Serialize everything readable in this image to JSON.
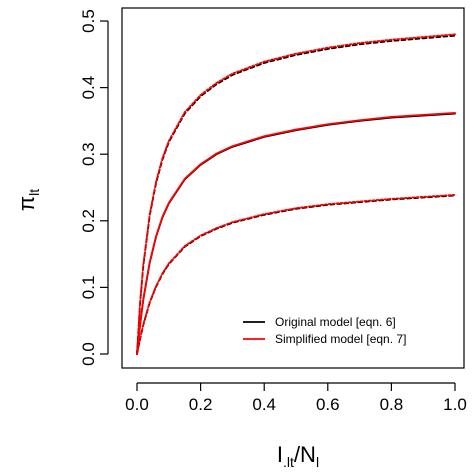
{
  "chart_data": {
    "type": "line",
    "xlabel": "I.lt/Nl",
    "ylabel": "πlt",
    "xlim": [
      0.0,
      1.0
    ],
    "ylim": [
      0.0,
      0.5
    ],
    "xticks": [
      "0.0",
      "0.2",
      "0.4",
      "0.6",
      "0.8",
      "1.0"
    ],
    "yticks": [
      "0.0",
      "0.1",
      "0.2",
      "0.3",
      "0.4",
      "0.5"
    ],
    "grid": false,
    "legend_position": "bottom-right",
    "legend": [
      {
        "label": "Original model [eqn. 6]",
        "color": "#000000"
      },
      {
        "label": "Simplified model [eqn. 7]",
        "color": "#ff0000"
      }
    ],
    "x": [
      0.0,
      0.01,
      0.02,
      0.04,
      0.06,
      0.08,
      0.1,
      0.15,
      0.2,
      0.25,
      0.3,
      0.4,
      0.5,
      0.6,
      0.7,
      0.8,
      0.9,
      1.0
    ],
    "curves": [
      {
        "model": "original",
        "band": "upper",
        "style": "dashed",
        "color": "#000000",
        "values": [
          0.0,
          0.078,
          0.133,
          0.208,
          0.257,
          0.292,
          0.318,
          0.361,
          0.387,
          0.405,
          0.419,
          0.437,
          0.449,
          0.458,
          0.465,
          0.47,
          0.474,
          0.478
        ]
      },
      {
        "model": "simplified",
        "band": "upper",
        "style": "dotted",
        "color": "#ff0000",
        "values": [
          0.0,
          0.079,
          0.135,
          0.21,
          0.259,
          0.294,
          0.32,
          0.363,
          0.389,
          0.407,
          0.421,
          0.439,
          0.451,
          0.46,
          0.467,
          0.472,
          0.476,
          0.48
        ]
      },
      {
        "model": "original",
        "band": "middle",
        "style": "solid",
        "color": "#000000",
        "values": [
          0.0,
          0.045,
          0.082,
          0.137,
          0.176,
          0.205,
          0.226,
          0.262,
          0.284,
          0.3,
          0.311,
          0.326,
          0.336,
          0.344,
          0.35,
          0.355,
          0.358,
          0.361
        ]
      },
      {
        "model": "simplified",
        "band": "middle",
        "style": "solid",
        "color": "#ff0000",
        "values": [
          0.0,
          0.046,
          0.083,
          0.138,
          0.177,
          0.206,
          0.227,
          0.263,
          0.285,
          0.301,
          0.312,
          0.327,
          0.337,
          0.345,
          0.351,
          0.356,
          0.359,
          0.362
        ]
      },
      {
        "model": "original",
        "band": "lower",
        "style": "dashed",
        "color": "#000000",
        "values": [
          0.0,
          0.023,
          0.044,
          0.077,
          0.101,
          0.12,
          0.135,
          0.161,
          0.177,
          0.188,
          0.197,
          0.209,
          0.218,
          0.224,
          0.228,
          0.232,
          0.235,
          0.238
        ]
      },
      {
        "model": "simplified",
        "band": "lower",
        "style": "dotted",
        "color": "#ff0000",
        "values": [
          0.0,
          0.024,
          0.045,
          0.078,
          0.102,
          0.121,
          0.136,
          0.162,
          0.178,
          0.189,
          0.198,
          0.21,
          0.219,
          0.225,
          0.229,
          0.233,
          0.236,
          0.239
        ]
      }
    ]
  }
}
